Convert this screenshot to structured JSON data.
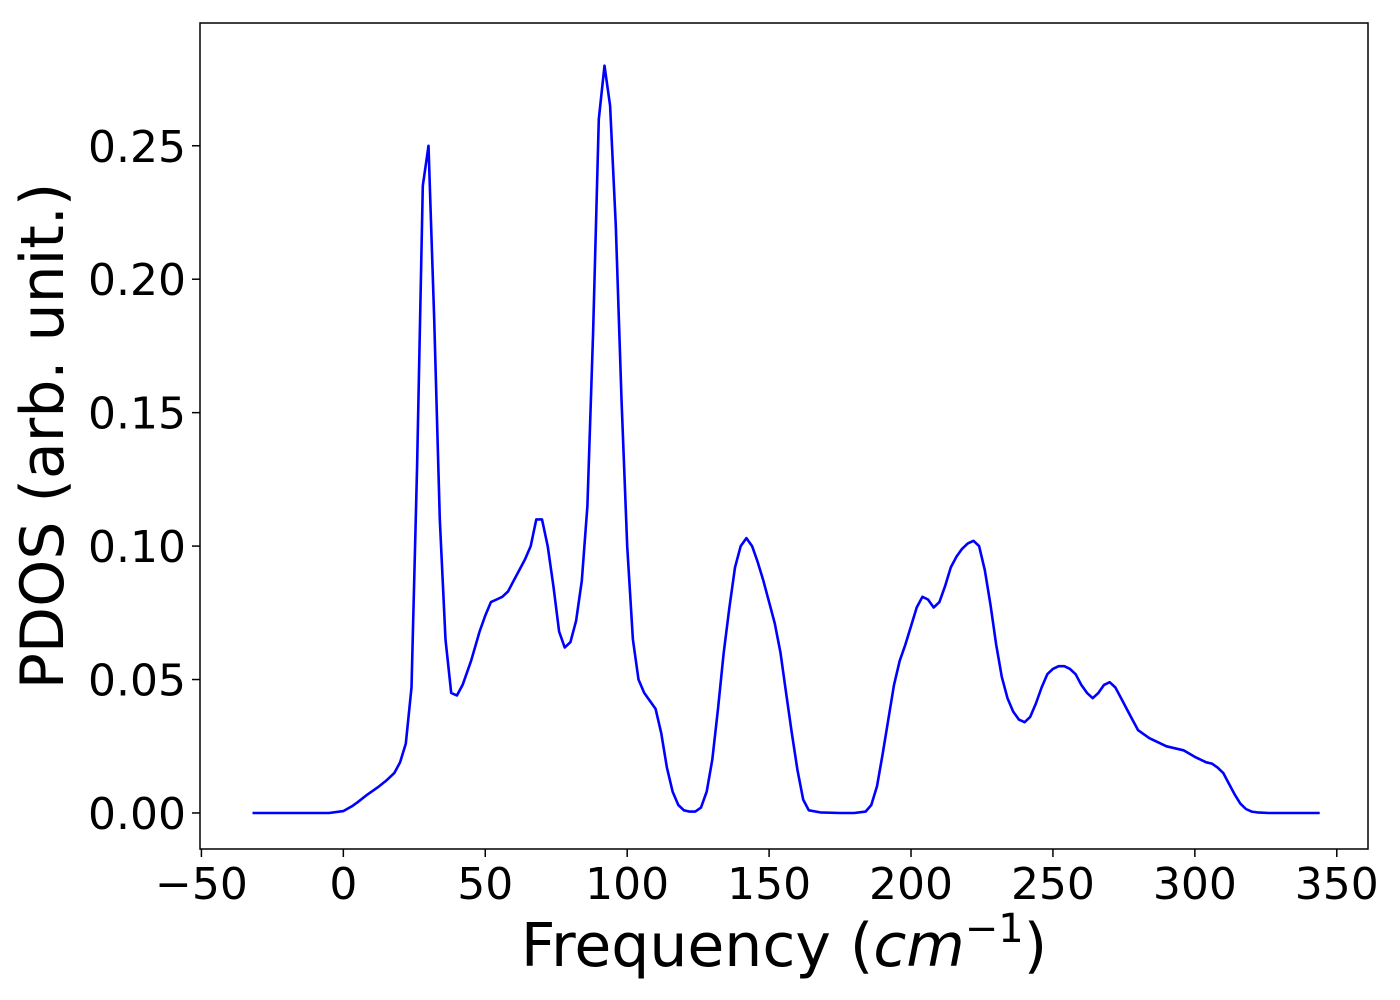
{
  "chart_data": {
    "type": "line",
    "title": "",
    "xlabel": "Frequency (cm⁻¹)",
    "xlabel_main": "Frequency (",
    "xlabel_unit": "cm",
    "xlabel_exp": "−1",
    "xlabel_close": ")",
    "ylabel": "PDOS (arb. unit.)",
    "xlim": [
      -50.5,
      361
    ],
    "ylim": [
      -0.0135,
      0.296
    ],
    "grid": false,
    "legend": "none",
    "line_color": "#0000ff",
    "xticks": [
      -50,
      0,
      50,
      100,
      150,
      200,
      250,
      300,
      350
    ],
    "xtick_labels": [
      "−50",
      "0",
      "50",
      "100",
      "150",
      "200",
      "250",
      "300",
      "350"
    ],
    "yticks": [
      0.0,
      0.05,
      0.1,
      0.15,
      0.2,
      0.25
    ],
    "ytick_labels": [
      "0.00",
      "0.05",
      "0.10",
      "0.15",
      "0.20",
      "0.25"
    ],
    "series": [
      {
        "x": [
          -32,
          -20,
          -10,
          -5,
          0,
          3,
          5,
          8,
          12,
          15,
          18,
          20,
          22,
          24,
          26,
          28,
          30,
          32,
          34,
          36,
          38,
          40,
          42,
          45,
          48,
          50,
          52,
          54,
          56,
          58,
          60,
          62,
          64,
          66,
          68,
          70,
          72,
          74,
          76,
          78,
          80,
          82,
          84,
          86,
          88,
          90,
          92,
          94,
          96,
          98,
          100,
          102,
          104,
          106,
          108,
          110,
          112,
          114,
          116,
          118,
          120,
          122,
          124,
          126,
          128,
          130,
          132,
          134,
          136,
          138,
          140,
          142,
          144,
          146,
          148,
          150,
          152,
          154,
          156,
          158,
          160,
          162,
          164,
          168,
          175,
          180,
          184,
          186,
          188,
          190,
          192,
          194,
          196,
          198,
          200,
          202,
          204,
          206,
          208,
          210,
          212,
          214,
          216,
          218,
          220,
          222,
          224,
          226,
          228,
          230,
          232,
          234,
          236,
          238,
          240,
          242,
          244,
          246,
          248,
          250,
          252,
          254,
          256,
          258,
          260,
          262,
          264,
          266,
          268,
          270,
          272,
          274,
          276,
          278,
          280,
          284,
          290,
          296,
          300,
          304,
          306,
          308,
          310,
          312,
          314,
          316,
          318,
          320,
          322,
          326,
          335,
          344
        ],
        "y": [
          0.0,
          0.0,
          0.0,
          0.0,
          0.0007,
          0.0025,
          0.004,
          0.0065,
          0.0095,
          0.012,
          0.015,
          0.019,
          0.026,
          0.047,
          0.13,
          0.235,
          0.25,
          0.185,
          0.11,
          0.065,
          0.045,
          0.044,
          0.048,
          0.057,
          0.068,
          0.074,
          0.079,
          0.08,
          0.081,
          0.083,
          0.087,
          0.091,
          0.095,
          0.1,
          0.11,
          0.11,
          0.1,
          0.085,
          0.068,
          0.062,
          0.064,
          0.072,
          0.087,
          0.115,
          0.18,
          0.26,
          0.28,
          0.265,
          0.22,
          0.155,
          0.1,
          0.065,
          0.05,
          0.045,
          0.042,
          0.039,
          0.03,
          0.017,
          0.008,
          0.003,
          0.001,
          0.0005,
          0.0005,
          0.002,
          0.008,
          0.02,
          0.039,
          0.06,
          0.077,
          0.092,
          0.1,
          0.103,
          0.1,
          0.094,
          0.087,
          0.079,
          0.071,
          0.06,
          0.045,
          0.03,
          0.016,
          0.005,
          0.001,
          0.0002,
          0.0,
          0.0,
          0.0005,
          0.003,
          0.01,
          0.022,
          0.035,
          0.048,
          0.057,
          0.063,
          0.07,
          0.077,
          0.081,
          0.08,
          0.077,
          0.079,
          0.085,
          0.092,
          0.096,
          0.099,
          0.101,
          0.102,
          0.1,
          0.091,
          0.078,
          0.063,
          0.051,
          0.043,
          0.038,
          0.035,
          0.034,
          0.036,
          0.041,
          0.047,
          0.052,
          0.054,
          0.055,
          0.055,
          0.054,
          0.052,
          0.048,
          0.045,
          0.043,
          0.045,
          0.048,
          0.049,
          0.047,
          0.043,
          0.039,
          0.035,
          0.031,
          0.028,
          0.025,
          0.0235,
          0.021,
          0.019,
          0.0185,
          0.017,
          0.015,
          0.011,
          0.007,
          0.0035,
          0.0015,
          0.0005,
          0.0002,
          0.0,
          0.0,
          0.0
        ]
      }
    ]
  }
}
